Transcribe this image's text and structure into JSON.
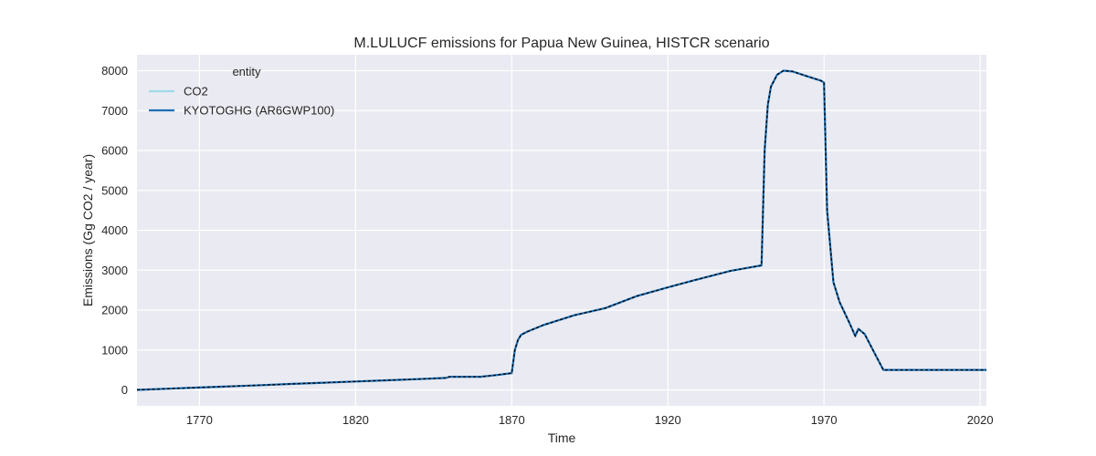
{
  "chart_data": {
    "type": "line",
    "title": "M.LULUCF emissions for Papua New Guinea, HISTCR scenario",
    "xlabel": "Time",
    "ylabel": "Emissions (Gg CO2 / year)",
    "xlim": [
      1750,
      2022
    ],
    "ylim": [
      -400,
      8400
    ],
    "xticks": [
      1770,
      1820,
      1870,
      1920,
      1970,
      2020
    ],
    "yticks": [
      0,
      1000,
      2000,
      3000,
      4000,
      5000,
      6000,
      7000,
      8000
    ],
    "grid": true,
    "legend": {
      "title": "entity",
      "position": "top-left"
    },
    "x": [
      1750,
      1760,
      1770,
      1780,
      1790,
      1800,
      1810,
      1820,
      1830,
      1840,
      1849,
      1850,
      1855,
      1860,
      1865,
      1870,
      1871,
      1872,
      1873,
      1875,
      1880,
      1890,
      1900,
      1910,
      1920,
      1930,
      1940,
      1950,
      1951,
      1952,
      1953,
      1955,
      1957,
      1960,
      1965,
      1969,
      1970,
      1971,
      1973,
      1975,
      1978,
      1980,
      1981,
      1983,
      1985,
      1987,
      1989,
      1990,
      2000,
      2010,
      2022
    ],
    "series": [
      {
        "name": "CO2",
        "color": "#9fdbe9",
        "values": [
          0,
          30,
          60,
          90,
          120,
          150,
          180,
          210,
          240,
          270,
          300,
          330,
          330,
          330,
          370,
          420,
          1000,
          1250,
          1380,
          1460,
          1620,
          1870,
          2050,
          2350,
          2570,
          2780,
          2980,
          3120,
          6000,
          7150,
          7600,
          7900,
          8000,
          7980,
          7850,
          7750,
          7700,
          4500,
          2700,
          2200,
          1700,
          1350,
          1530,
          1400,
          1100,
          800,
          500,
          500,
          500,
          500,
          500
        ]
      },
      {
        "name": "KYOTOGHG (AR6GWP100)",
        "color": "#1f6fb4",
        "values": [
          0,
          30,
          60,
          90,
          120,
          150,
          180,
          210,
          240,
          270,
          300,
          330,
          330,
          330,
          370,
          420,
          1000,
          1250,
          1380,
          1460,
          1620,
          1870,
          2050,
          2350,
          2570,
          2780,
          2980,
          3120,
          6000,
          7150,
          7600,
          7900,
          8000,
          7980,
          7850,
          7750,
          7700,
          4500,
          2700,
          2200,
          1700,
          1350,
          1530,
          1400,
          1100,
          800,
          500,
          500,
          500,
          500,
          500
        ]
      }
    ]
  }
}
